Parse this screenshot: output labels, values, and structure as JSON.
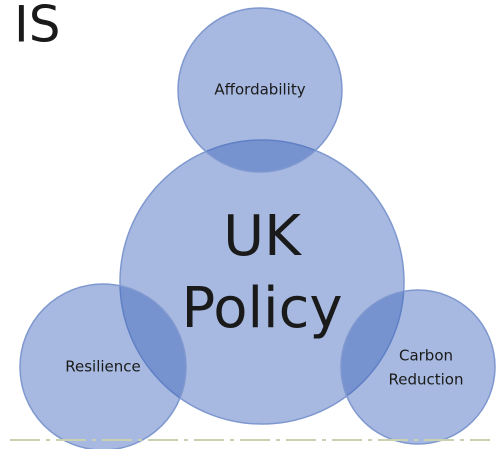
{
  "heading": "IS",
  "center": {
    "line1": "UK",
    "line2": "Policy"
  },
  "nodes": [
    {
      "label": "Affordability"
    },
    {
      "label": "Resilience"
    },
    {
      "label": "Carbon",
      "label2": "Reduction"
    }
  ]
}
